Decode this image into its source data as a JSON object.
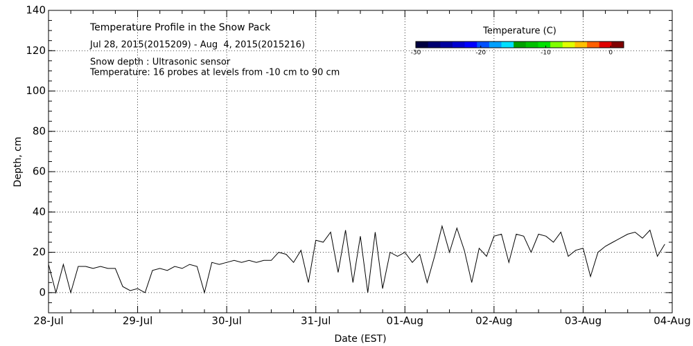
{
  "chart_data": {
    "type": "line",
    "title": "Temperature Profile in the Snow Pack",
    "subtitle": "Jul 28, 2015(2015209) - Aug  4, 2015(2015216)",
    "annotations": [
      "Snow depth : Ultrasonic sensor",
      "Temperature: 16 probes at levels from -10 cm to 90 cm"
    ],
    "x_label": "Date (EST)",
    "y_label": "Depth, cm",
    "categories": [
      "28-Jul",
      null,
      null,
      null,
      null,
      null,
      null,
      null,
      null,
      null,
      null,
      null,
      "29-Jul",
      null,
      null,
      null,
      null,
      null,
      null,
      null,
      null,
      null,
      null,
      null,
      "30-Jul",
      null,
      null,
      null,
      null,
      null,
      null,
      null,
      null,
      null,
      null,
      null,
      "31-Jul",
      null,
      null,
      null,
      null,
      null,
      null,
      null,
      null,
      null,
      null,
      null,
      "01-Aug",
      null,
      null,
      null,
      null,
      null,
      null,
      null,
      null,
      null,
      null,
      null,
      "02-Aug",
      null,
      null,
      null,
      null,
      null,
      null,
      null,
      null,
      null,
      null,
      null,
      "03-Aug",
      null,
      null,
      null,
      null,
      null,
      null,
      null,
      null,
      null,
      null,
      null,
      "04-Aug"
    ],
    "values": [
      14,
      0,
      14,
      0,
      13,
      13,
      12,
      13,
      12,
      12,
      3,
      1,
      2,
      0,
      11,
      12,
      11,
      13,
      12,
      14,
      13,
      0,
      15,
      14,
      15,
      16,
      15,
      16,
      15,
      16,
      16,
      20,
      19,
      15,
      21,
      5,
      26,
      25,
      30,
      10,
      31,
      5,
      28,
      0,
      30,
      2,
      20,
      18,
      20,
      15,
      19,
      5,
      18,
      33,
      20,
      32,
      21,
      5,
      22,
      18,
      28,
      29,
      15,
      29,
      28,
      20,
      29,
      28,
      25,
      30,
      18,
      21,
      22,
      8,
      20,
      23,
      25,
      27,
      29,
      30,
      27,
      31,
      18,
      24,
      null
    ],
    "color": "#000000",
    "ylim": [
      -10,
      140
    ],
    "yticks": [
      0,
      20,
      40,
      60,
      80,
      100,
      120,
      140
    ],
    "grid": true,
    "colorbar": {
      "title": "Temperature (C)",
      "lim": [
        -30,
        2
      ],
      "ticks": [
        -30,
        -20,
        -10,
        0
      ],
      "colors": [
        "#000040",
        "#000070",
        "#0000a0",
        "#0000d0",
        "#0000ff",
        "#0050ff",
        "#00a0ff",
        "#00e0ff",
        "#00a000",
        "#00c000",
        "#00e000",
        "#80ff00",
        "#e0ff00",
        "#ffc000",
        "#ff6000",
        "#e00000",
        "#800000"
      ]
    }
  }
}
